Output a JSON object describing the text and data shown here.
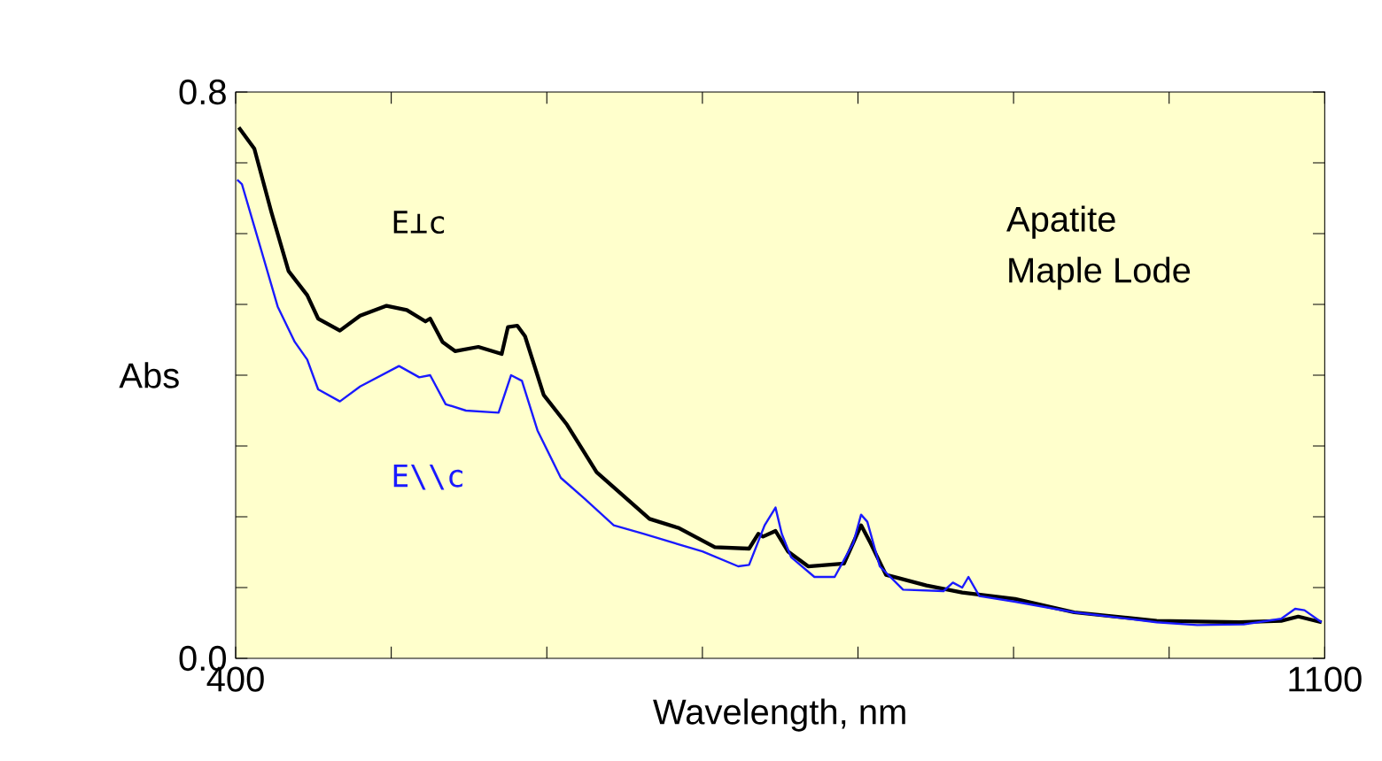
{
  "chart_data": {
    "type": "line",
    "xlabel": "Wavelength, nm",
    "ylabel": "Abs",
    "annotations": [
      "Apatite",
      "Maple Lode"
    ],
    "xlim": [
      400,
      1100
    ],
    "ylim": [
      0,
      0.8
    ],
    "xticks": [
      400,
      {
        "value": 500,
        "label": null
      },
      {
        "value": 600,
        "label": null
      },
      {
        "value": 700,
        "label": null
      },
      {
        "value": 800,
        "label": null
      },
      {
        "value": 900,
        "label": null
      },
      {
        "value": 1000,
        "label": null
      },
      1100
    ],
    "yticks": [
      {
        "value": 0,
        "label": "0.0"
      },
      {
        "value": 0.1,
        "label": null
      },
      {
        "value": 0.2,
        "label": null
      },
      {
        "value": 0.3,
        "label": null
      },
      {
        "value": 0.4,
        "label": null
      },
      {
        "value": 0.5,
        "label": null
      },
      {
        "value": 0.6,
        "label": null
      },
      {
        "value": 0.7,
        "label": null
      },
      {
        "value": 0.8,
        "label": "0.8"
      }
    ],
    "line_style": "solid",
    "series": [
      {
        "name": "E⊥c",
        "color": "#000000",
        "x": [
          402,
          412,
          423,
          434,
          446,
          453,
          467,
          480,
          497,
          510,
          522,
          525,
          533,
          541,
          556,
          571,
          575,
          581,
          586,
          598,
          613,
          632,
          647,
          666,
          685,
          708,
          730,
          736,
          739,
          747,
          755,
          768,
          791,
          802,
          808,
          818,
          844,
          867,
          901,
          939,
          992,
          1045,
          1072,
          1083,
          1098
        ],
        "values": [
          0.75,
          0.72,
          0.63,
          0.547,
          0.513,
          0.48,
          0.463,
          0.484,
          0.498,
          0.492,
          0.476,
          0.48,
          0.447,
          0.434,
          0.44,
          0.43,
          0.468,
          0.47,
          0.455,
          0.372,
          0.33,
          0.263,
          0.234,
          0.197,
          0.184,
          0.157,
          0.155,
          0.176,
          0.172,
          0.18,
          0.151,
          0.13,
          0.134,
          0.188,
          0.163,
          0.118,
          0.103,
          0.093,
          0.084,
          0.065,
          0.053,
          0.051,
          0.053,
          0.059,
          0.051
        ]
      },
      {
        "name": "E\\\\c",
        "color": "#1a1aff",
        "x": [
          401,
          404,
          416,
          427,
          438,
          446,
          453,
          467,
          480,
          505,
          518,
          525,
          535,
          548,
          569,
          577,
          584,
          594,
          609,
          624,
          643,
          662,
          700,
          723,
          730,
          740,
          747,
          751,
          757,
          772,
          785,
          797,
          802,
          806,
          814,
          829,
          855,
          861,
          867,
          871,
          878,
          901,
          939,
          992,
          1018,
          1048,
          1072,
          1081,
          1087,
          1098
        ],
        "values": [
          0.676,
          0.67,
          0.58,
          0.497,
          0.447,
          0.422,
          0.38,
          0.363,
          0.384,
          0.413,
          0.397,
          0.4,
          0.359,
          0.35,
          0.347,
          0.4,
          0.392,
          0.322,
          0.255,
          0.226,
          0.188,
          0.176,
          0.151,
          0.13,
          0.132,
          0.188,
          0.213,
          0.176,
          0.143,
          0.115,
          0.115,
          0.163,
          0.203,
          0.193,
          0.13,
          0.097,
          0.095,
          0.107,
          0.1,
          0.115,
          0.088,
          0.08,
          0.065,
          0.051,
          0.047,
          0.048,
          0.056,
          0.07,
          0.068,
          0.051
        ]
      }
    ]
  }
}
